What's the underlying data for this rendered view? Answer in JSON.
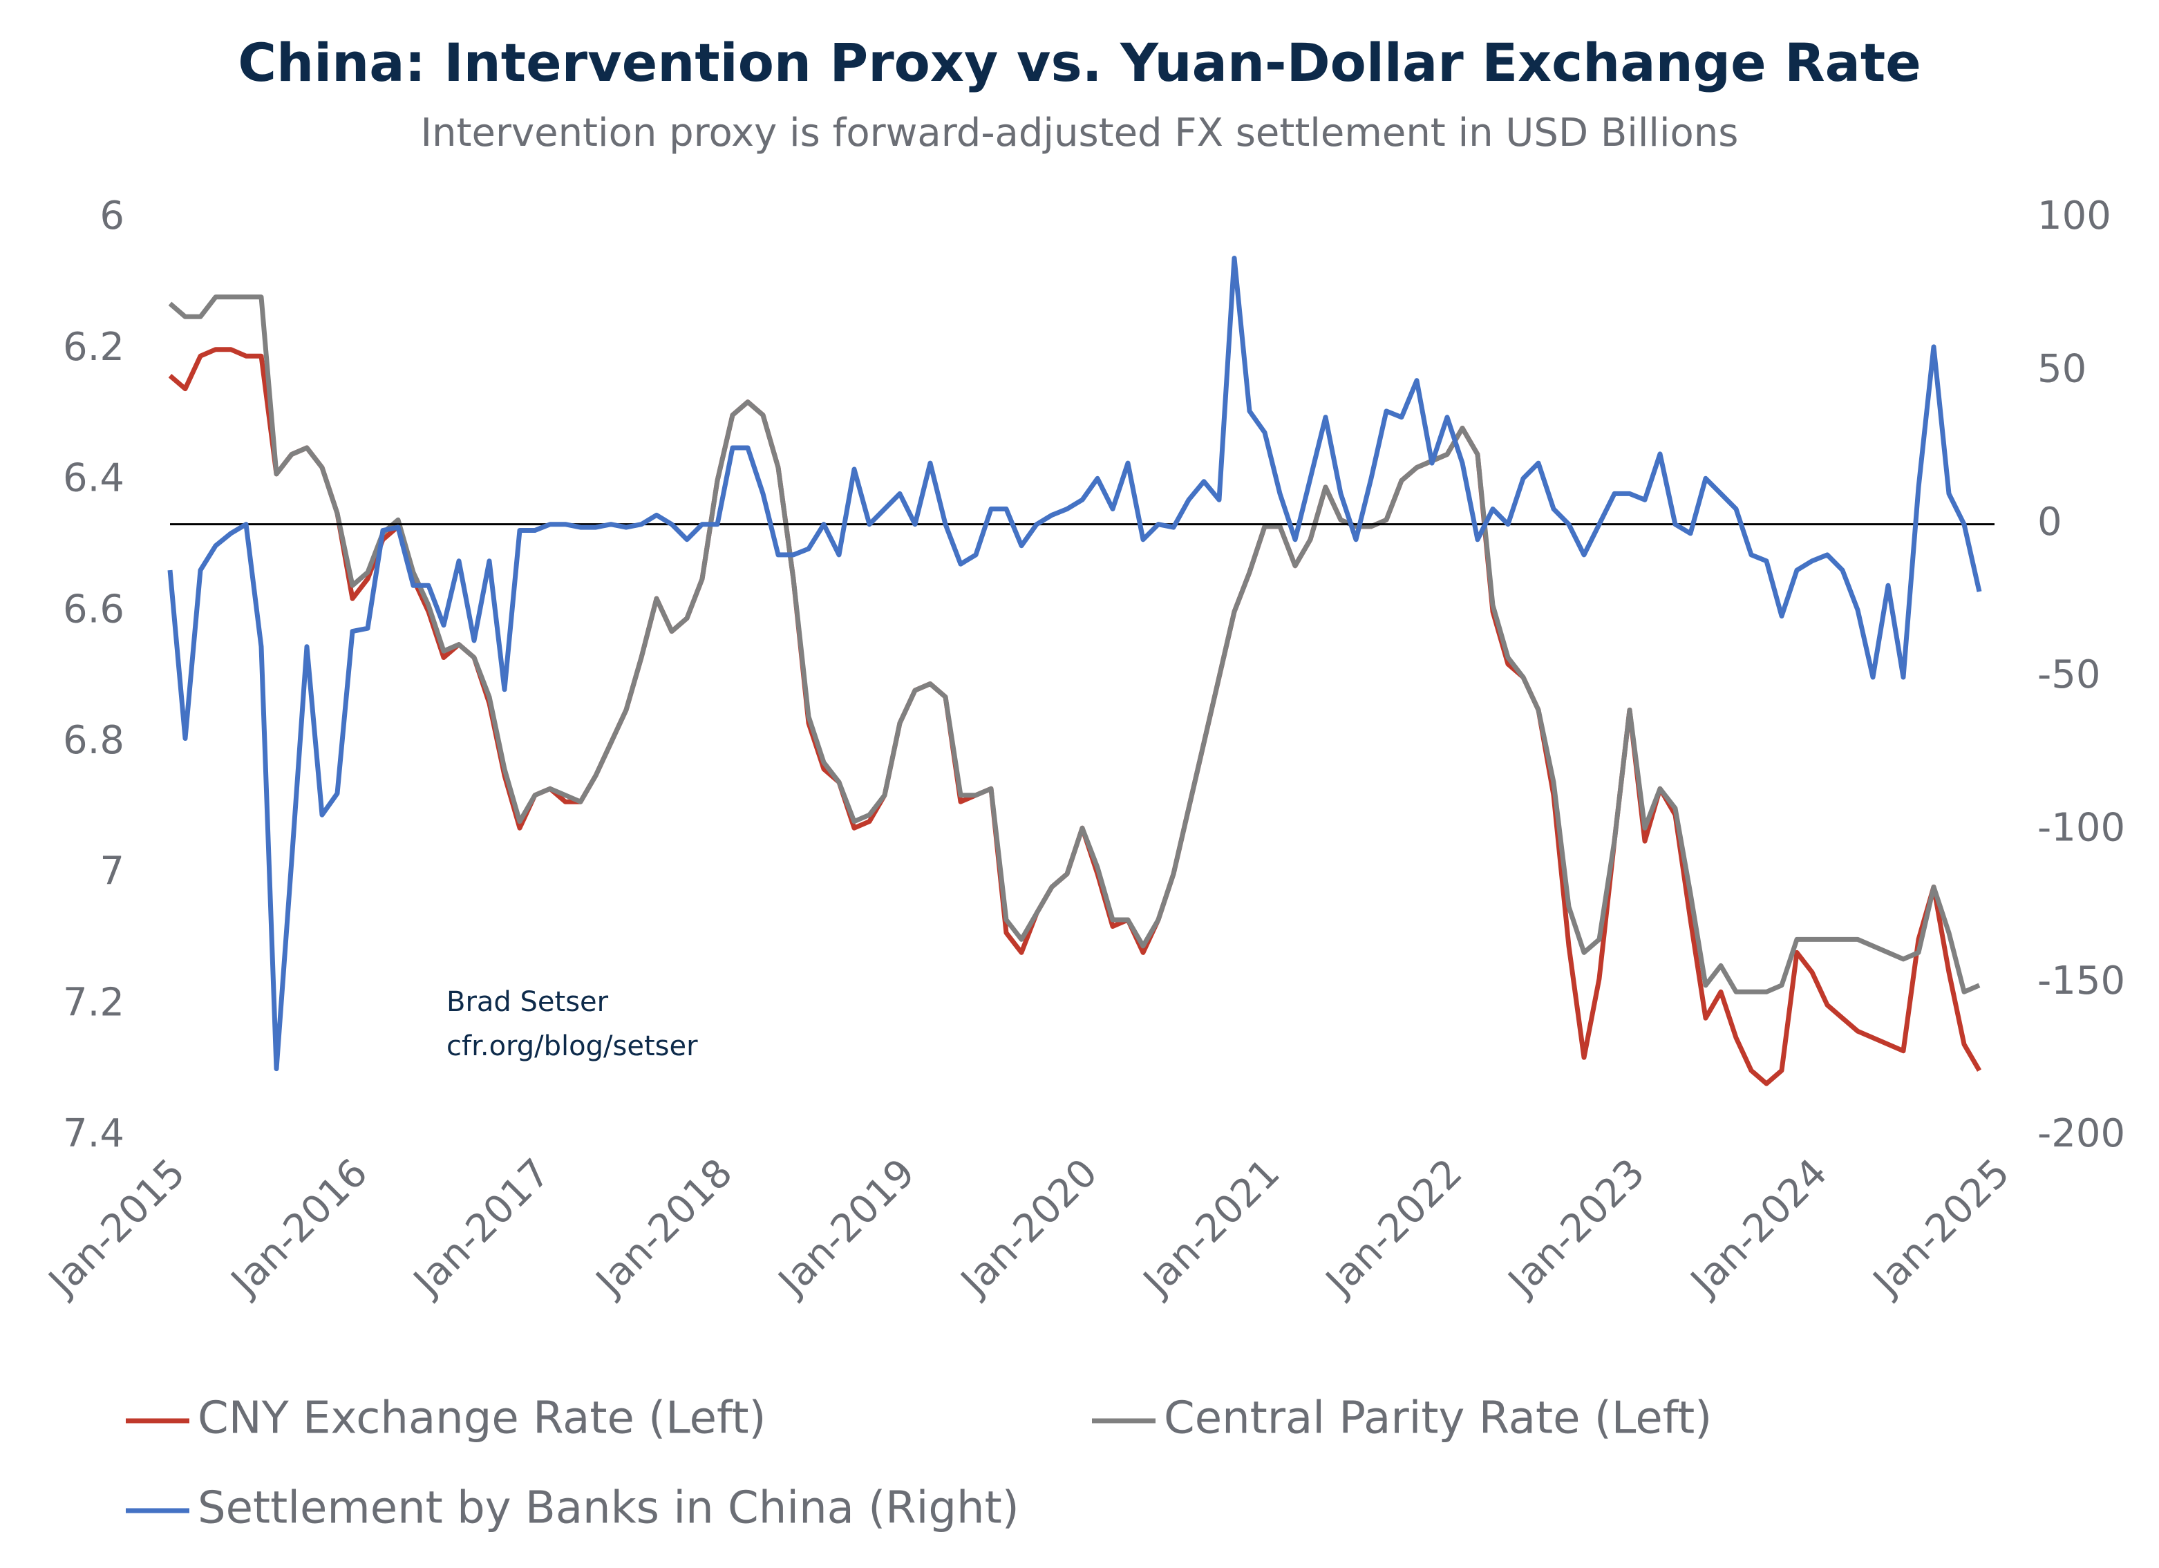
{
  "chart_data": {
    "type": "line",
    "title": "China: Intervention Proxy vs. Yuan-Dollar Exchange Rate",
    "subtitle": "Intervention proxy is forward-adjusted FX settlement in USD Billions",
    "annotation": [
      "Brad Setser",
      "cfr.org/blog/setser"
    ],
    "x": [
      "Jan-2015",
      "Feb-2015",
      "Mar-2015",
      "Apr-2015",
      "May-2015",
      "Jun-2015",
      "Jul-2015",
      "Aug-2015",
      "Sep-2015",
      "Oct-2015",
      "Nov-2015",
      "Dec-2015",
      "Jan-2016",
      "Feb-2016",
      "Mar-2016",
      "Apr-2016",
      "May-2016",
      "Jun-2016",
      "Jul-2016",
      "Aug-2016",
      "Sep-2016",
      "Oct-2016",
      "Nov-2016",
      "Dec-2016",
      "Jan-2017",
      "Feb-2017",
      "Mar-2017",
      "Apr-2017",
      "May-2017",
      "Jun-2017",
      "Jul-2017",
      "Aug-2017",
      "Sep-2017",
      "Oct-2017",
      "Nov-2017",
      "Dec-2017",
      "Jan-2018",
      "Feb-2018",
      "Mar-2018",
      "Apr-2018",
      "May-2018",
      "Jun-2018",
      "Jul-2018",
      "Aug-2018",
      "Sep-2018",
      "Oct-2018",
      "Nov-2018",
      "Dec-2018",
      "Jan-2019",
      "Feb-2019",
      "Mar-2019",
      "Apr-2019",
      "May-2019",
      "Jun-2019",
      "Jul-2019",
      "Aug-2019",
      "Sep-2019",
      "Oct-2019",
      "Nov-2019",
      "Dec-2019",
      "Jan-2020",
      "Feb-2020",
      "Mar-2020",
      "Apr-2020",
      "May-2020",
      "Jun-2020",
      "Jul-2020",
      "Aug-2020",
      "Sep-2020",
      "Oct-2020",
      "Nov-2020",
      "Dec-2020",
      "Jan-2021",
      "Feb-2021",
      "Mar-2021",
      "Apr-2021",
      "May-2021",
      "Jun-2021",
      "Jul-2021",
      "Aug-2021",
      "Sep-2021",
      "Oct-2021",
      "Nov-2021",
      "Dec-2021",
      "Jan-2022",
      "Feb-2022",
      "Mar-2022",
      "Apr-2022",
      "May-2022",
      "Jun-2022",
      "Jul-2022",
      "Aug-2022",
      "Sep-2022",
      "Oct-2022",
      "Nov-2022",
      "Dec-2022",
      "Jan-2023",
      "Feb-2023",
      "Mar-2023",
      "Apr-2023",
      "May-2023",
      "Jun-2023",
      "Jul-2023",
      "Aug-2023",
      "Sep-2023",
      "Oct-2023",
      "Nov-2023",
      "Dec-2023",
      "Jan-2024",
      "Feb-2024",
      "Mar-2024",
      "Apr-2024",
      "May-2024",
      "Jun-2024",
      "Jul-2024",
      "Aug-2024",
      "Sep-2024",
      "Oct-2024",
      "Nov-2024",
      "Dec-2024"
    ],
    "xlim": [
      "Jan-2015",
      "Jan-2025"
    ],
    "xticks": [
      "Jan-2015",
      "Jan-2016",
      "Jan-2017",
      "Jan-2018",
      "Jan-2019",
      "Jan-2020",
      "Jan-2021",
      "Jan-2022",
      "Jan-2023",
      "Jan-2024",
      "Jan-2025"
    ],
    "ylim": [
      6,
      7.4
    ],
    "yticks": [
      6,
      6.2,
      6.4,
      6.6,
      6.8,
      7,
      7.2,
      7.4
    ],
    "y2lim": [
      100,
      -200
    ],
    "y2ticks": [
      100,
      50,
      0,
      -50,
      -100,
      -150,
      -200
    ],
    "series": [
      {
        "name": "CNY Exchange Rate (Left)",
        "color": "#c0392b",
        "values": [
          6.24,
          6.26,
          6.21,
          6.2,
          6.2,
          6.21,
          6.21,
          6.39,
          6.36,
          6.35,
          6.38,
          6.45,
          6.58,
          6.55,
          6.49,
          6.47,
          6.55,
          6.6,
          6.67,
          6.65,
          6.67,
          6.74,
          6.85,
          6.93,
          6.88,
          6.87,
          6.89,
          6.89,
          6.85,
          6.8,
          6.75,
          6.67,
          6.58,
          6.63,
          6.61,
          6.55,
          6.4,
          6.3,
          6.28,
          6.3,
          6.38,
          6.55,
          6.77,
          6.84,
          6.86,
          6.93,
          6.92,
          6.88,
          6.77,
          6.72,
          6.71,
          6.73,
          6.89,
          6.88,
          6.87,
          7.09,
          7.12,
          7.06,
          7.02,
          7.0,
          6.93,
          7.0,
          7.08,
          7.07,
          7.12,
          7.07,
          7.0,
          6.9,
          6.8,
          6.7,
          6.6,
          6.54,
          6.47,
          6.47,
          6.53,
          6.49,
          6.41,
          6.46,
          6.47,
          6.47,
          6.46,
          6.4,
          6.38,
          6.37,
          6.36,
          6.32,
          6.36,
          6.6,
          6.68,
          6.7,
          6.75,
          6.88,
          7.11,
          7.28,
          7.16,
          6.95,
          6.75,
          6.95,
          6.87,
          6.91,
          7.07,
          7.22,
          7.18,
          7.25,
          7.3,
          7.32,
          7.3,
          7.12,
          7.15,
          7.2,
          7.22,
          7.24,
          7.25,
          7.26,
          7.27,
          7.1,
          7.02,
          7.15,
          7.26,
          7.3
        ]
      },
      {
        "name": "Central Parity Rate (Left)",
        "color": "#808080",
        "values": [
          6.13,
          6.15,
          6.15,
          6.12,
          6.12,
          6.12,
          6.12,
          6.39,
          6.36,
          6.35,
          6.38,
          6.45,
          6.56,
          6.54,
          6.48,
          6.46,
          6.54,
          6.59,
          6.66,
          6.65,
          6.67,
          6.73,
          6.84,
          6.92,
          6.88,
          6.87,
          6.88,
          6.89,
          6.85,
          6.8,
          6.75,
          6.67,
          6.58,
          6.63,
          6.61,
          6.55,
          6.4,
          6.3,
          6.28,
          6.3,
          6.38,
          6.55,
          6.76,
          6.83,
          6.86,
          6.92,
          6.91,
          6.88,
          6.77,
          6.72,
          6.71,
          6.73,
          6.88,
          6.88,
          6.87,
          7.07,
          7.1,
          7.06,
          7.02,
          7.0,
          6.93,
          6.99,
          7.07,
          7.07,
          7.11,
          7.07,
          7.0,
          6.9,
          6.8,
          6.7,
          6.6,
          6.54,
          6.47,
          6.47,
          6.53,
          6.49,
          6.41,
          6.46,
          6.47,
          6.47,
          6.46,
          6.4,
          6.38,
          6.37,
          6.36,
          6.32,
          6.36,
          6.59,
          6.67,
          6.7,
          6.75,
          6.86,
          7.05,
          7.12,
          7.1,
          6.95,
          6.75,
          6.93,
          6.87,
          6.9,
          7.03,
          7.17,
          7.14,
          7.18,
          7.18,
          7.18,
          7.17,
          7.1,
          7.1,
          7.1,
          7.1,
          7.1,
          7.11,
          7.12,
          7.13,
          7.12,
          7.02,
          7.09,
          7.18,
          7.17
        ]
      },
      {
        "name": "Settlement by Banks in China (Right)",
        "color": "#4472c4",
        "axis": "y2",
        "values": [
          -15,
          -70,
          -15,
          -7,
          -3,
          0,
          -40,
          -178,
          -110,
          -40,
          -95,
          -88,
          -35,
          -34,
          -2,
          -1,
          -20,
          -20,
          -33,
          -12,
          -38,
          -12,
          -54,
          -2,
          -2,
          0,
          0,
          -1,
          -1,
          0,
          -1,
          0,
          3,
          0,
          -5,
          0,
          0,
          25,
          25,
          10,
          -10,
          -10,
          -8,
          0,
          -10,
          18,
          0,
          5,
          10,
          0,
          20,
          0,
          -13,
          -10,
          5,
          5,
          -7,
          0,
          3,
          5,
          8,
          15,
          5,
          20,
          -5,
          0,
          -1,
          8,
          14,
          8,
          87,
          37,
          30,
          10,
          -5,
          15,
          35,
          10,
          -5,
          15,
          37,
          35,
          47,
          20,
          35,
          20,
          -5,
          5,
          0,
          15,
          20,
          5,
          0,
          -10,
          0,
          10,
          10,
          8,
          23,
          0,
          -3,
          15,
          10,
          5,
          -10,
          -12,
          -30,
          -15,
          -12,
          -10,
          -15,
          -28,
          -50,
          -20,
          -50,
          12,
          58,
          10,
          0,
          -22
        ]
      }
    ]
  }
}
